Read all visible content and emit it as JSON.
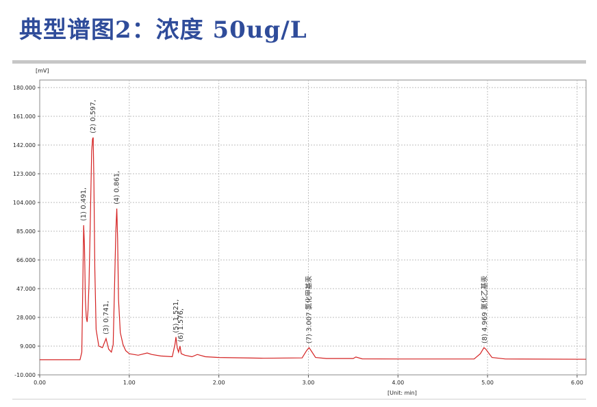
{
  "slide": {
    "title": "典型谱图2：浓度 50ug/L"
  },
  "chart_data": {
    "type": "line",
    "x_unit_label": "[Unit: min]",
    "y_unit_label": "[mV]",
    "xlim": [
      0.0,
      6.1
    ],
    "ylim": [
      -10.0,
      185.0
    ],
    "x_ticks": [
      0.0,
      1.0,
      2.0,
      3.0,
      4.0,
      5.0,
      6.0
    ],
    "x_tick_labels": [
      "0.00",
      "1.00",
      "2.00",
      "3.00",
      "4.00",
      "5.00",
      "6.00"
    ],
    "y_ticks": [
      -10.0,
      9.0,
      28.0,
      47.0,
      66.0,
      85.0,
      104.0,
      123.0,
      142.0,
      161.0,
      180.0
    ],
    "y_tick_labels": [
      "-10.000",
      "9.000",
      "28.000",
      "47.000",
      "66.000",
      "85.000",
      "104.000",
      "123.000",
      "142.000",
      "161.000",
      "180.000"
    ],
    "grid": true,
    "line_color": "#d42020",
    "series": [
      {
        "x": [
          0.0,
          0.45,
          0.47,
          0.48,
          0.491,
          0.5,
          0.51,
          0.52,
          0.53,
          0.54,
          0.55,
          0.56,
          0.57,
          0.58,
          0.59,
          0.597,
          0.605,
          0.615,
          0.63,
          0.66,
          0.7,
          0.741,
          0.77,
          0.8,
          0.82,
          0.84,
          0.85,
          0.861,
          0.87,
          0.88,
          0.9,
          0.93,
          0.96,
          1.0,
          1.1,
          1.2,
          1.25,
          1.35,
          1.48,
          1.51,
          1.521,
          1.535,
          1.55,
          1.566,
          1.58,
          1.62,
          1.7,
          1.76,
          1.85,
          2.0,
          2.5,
          2.93,
          2.98,
          3.007,
          3.03,
          3.08,
          3.2,
          3.5,
          3.53,
          3.6,
          4.0,
          4.85,
          4.92,
          4.96,
          4.98,
          5.05,
          5.2,
          6.1
        ],
        "y": [
          0.0,
          0.0,
          5.0,
          45.0,
          89.0,
          75.0,
          40.0,
          28.0,
          25.0,
          33.0,
          50.0,
          78.0,
          108.0,
          138.0,
          146.0,
          147.0,
          120.0,
          60.0,
          20.0,
          9.0,
          8.0,
          14.0,
          7.0,
          5.0,
          10.0,
          60.0,
          85.0,
          100.0,
          80.0,
          40.0,
          18.0,
          10.0,
          6.0,
          4.0,
          3.0,
          4.5,
          3.5,
          2.5,
          2.0,
          10.0,
          15.0,
          8.0,
          5.0,
          9.0,
          4.0,
          3.0,
          2.0,
          3.5,
          2.0,
          1.5,
          1.0,
          1.2,
          6.0,
          8.0,
          6.0,
          1.5,
          0.8,
          0.8,
          1.8,
          0.6,
          0.5,
          0.5,
          4.0,
          8.0,
          7.0,
          1.5,
          0.5,
          0.3
        ]
      }
    ],
    "peak_labels": [
      {
        "text": "(1) 0.491,",
        "x": 0.491,
        "y": 89.0
      },
      {
        "text": "(2) 0.597,",
        "x": 0.597,
        "y": 147.0
      },
      {
        "text": "(3) 0.741,",
        "x": 0.741,
        "y": 14.0
      },
      {
        "text": "(4) 0.861,",
        "x": 0.861,
        "y": 100.0
      },
      {
        "text": "(5) 1.521,",
        "x": 1.521,
        "y": 15.0
      },
      {
        "text": "(6) 1.576,",
        "x": 1.576,
        "y": 9.0
      },
      {
        "text": "(7) 3.007 氯化甲基汞",
        "x": 3.007,
        "y": 8.0
      },
      {
        "text": "(8) 4.969 氯化乙基汞",
        "x": 4.969,
        "y": 8.0
      }
    ]
  }
}
